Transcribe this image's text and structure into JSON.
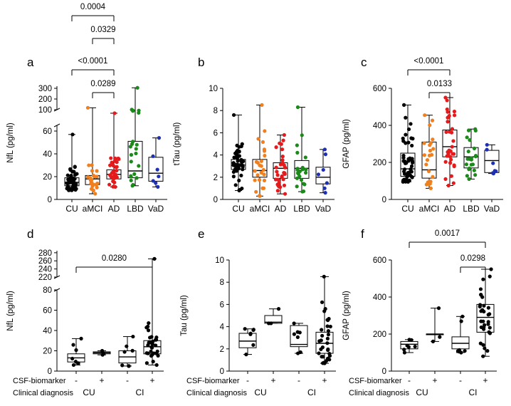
{
  "figure": {
    "row_headers": {
      "biomarker": "CSF-biomarker",
      "diagnosis": "Clinical diagnosis"
    }
  },
  "chart_data": [
    {
      "panel": "a",
      "type": "box",
      "ylabel": "NfL (pg/ml)",
      "categories": [
        "CU",
        "aMCI",
        "AD",
        "LBD",
        "VaD"
      ],
      "colors": [
        "#000000",
        "#f07f1e",
        "#e41a1c",
        "#1b8a1b",
        "#1f2fb4"
      ],
      "axis": {
        "lower_ticks": [
          "0",
          "20",
          "40",
          "60"
        ],
        "upper_ticks": [
          "100",
          "200",
          "300"
        ]
      },
      "boxes": [
        {
          "min": 8,
          "q1": 12,
          "median": 15,
          "q3": 19,
          "max": 57,
          "n": 50
        },
        {
          "min": 5,
          "q1": 13,
          "median": 18,
          "q3": 21,
          "max": 118,
          "n": 25
        },
        {
          "min": 11,
          "q1": 18,
          "median": 22,
          "q3": 26,
          "max": 67,
          "n": 32
        },
        {
          "min": 12,
          "q1": 19,
          "median": 25,
          "q3": 51,
          "max": 305,
          "n": 22
        },
        {
          "min": 11,
          "q1": 16,
          "median": 23,
          "q3": 37,
          "max": 54,
          "n": 7
        }
      ],
      "comparisons": [
        {
          "from": 0,
          "to": 2,
          "p": "0.0004"
        },
        {
          "from": 1,
          "to": 2,
          "p": "0.0329"
        },
        {
          "from": 0,
          "to": 2,
          "p": "<0.0001"
        },
        {
          "from": 1,
          "to": 2,
          "p": "0.0289"
        }
      ]
    },
    {
      "panel": "b",
      "type": "box",
      "ylabel": "tTau (pg/ml)",
      "categories": [
        "CU",
        "aMCI",
        "AD",
        "LBD",
        "VaD"
      ],
      "colors": [
        "#000000",
        "#f07f1e",
        "#e41a1c",
        "#1b8a1b",
        "#1f2fb4"
      ],
      "ylim": [
        0,
        10
      ],
      "yticks": [
        0,
        2,
        4,
        6,
        8,
        10
      ],
      "boxes": [
        {
          "min": 0.8,
          "q1": 2.7,
          "median": 3.1,
          "q3": 3.6,
          "max": 7.6,
          "n": 50
        },
        {
          "min": 0.3,
          "q1": 2.0,
          "median": 2.6,
          "q3": 3.6,
          "max": 8.5,
          "n": 25
        },
        {
          "min": 0.5,
          "q1": 1.9,
          "median": 2.8,
          "q3": 3.3,
          "max": 5.8,
          "n": 32
        },
        {
          "min": 0.7,
          "q1": 1.9,
          "median": 2.8,
          "q3": 3.5,
          "max": 8.3,
          "n": 22
        },
        {
          "min": 0.6,
          "q1": 1.4,
          "median": 2.0,
          "q3": 2.9,
          "max": 4.5,
          "n": 7
        }
      ],
      "comparisons": []
    },
    {
      "panel": "c",
      "type": "box",
      "ylabel": "GFAP (pg/ml)",
      "categories": [
        "CU",
        "aMCI",
        "AD",
        "LBD",
        "VaD"
      ],
      "colors": [
        "#000000",
        "#f07f1e",
        "#e41a1c",
        "#1b8a1b",
        "#1f2fb4"
      ],
      "ylim": [
        0,
        600
      ],
      "yticks": [
        0,
        200,
        400,
        600
      ],
      "boxes": [
        {
          "min": 95,
          "q1": 125,
          "median": 165,
          "q3": 250,
          "max": 510,
          "n": 50
        },
        {
          "min": 60,
          "q1": 115,
          "median": 160,
          "q3": 310,
          "max": 455,
          "n": 25
        },
        {
          "min": 75,
          "q1": 230,
          "median": 285,
          "q3": 375,
          "max": 550,
          "n": 32
        },
        {
          "min": 110,
          "q1": 170,
          "median": 230,
          "q3": 280,
          "max": 380,
          "n": 22
        },
        {
          "min": 140,
          "q1": 145,
          "median": 210,
          "q3": 265,
          "max": 295,
          "n": 7
        }
      ],
      "comparisons": [
        {
          "from": 0,
          "to": 2,
          "p": "<0.0001"
        },
        {
          "from": 1,
          "to": 2,
          "p": "0.0133"
        }
      ]
    },
    {
      "panel": "d",
      "type": "box",
      "ylabel": "NfL (pg/ml)",
      "categories": [
        "-",
        "+",
        "-",
        "+"
      ],
      "groups": [
        "CU",
        "CI"
      ],
      "axis": {
        "lower_ticks": [
          "0",
          "20",
          "40",
          "60",
          "80"
        ],
        "upper_ticks": [
          "220",
          "240",
          "260",
          "280"
        ]
      },
      "boxes": [
        {
          "min": 6,
          "q1": 9,
          "median": 13,
          "q3": 17,
          "max": 32,
          "n": 7
        },
        {
          "min": 16,
          "q1": 17,
          "median": 18,
          "q3": 19,
          "max": 20,
          "n": 3
        },
        {
          "min": 5,
          "q1": 8,
          "median": 14,
          "q3": 20,
          "max": 34,
          "n": 7
        },
        {
          "min": 6,
          "q1": 17,
          "median": 24,
          "q3": 30,
          "max": 265,
          "n": 32
        }
      ],
      "comparisons": [
        {
          "from": 0,
          "to": 3,
          "p": "0.0280"
        }
      ]
    },
    {
      "panel": "e",
      "type": "box",
      "ylabel": "Tau (pg/ml)",
      "categories": [
        "-",
        "+",
        "-",
        "+"
      ],
      "groups": [
        "CU",
        "CI"
      ],
      "ylim": [
        0,
        10
      ],
      "yticks": [
        0,
        2,
        4,
        6,
        8,
        10
      ],
      "boxes": [
        {
          "min": 1.5,
          "q1": 2.1,
          "median": 2.7,
          "q3": 3.4,
          "max": 3.8,
          "n": 7
        },
        {
          "min": 4.3,
          "q1": 4.3,
          "median": 4.4,
          "q3": 5.0,
          "max": 5.6,
          "n": 3
        },
        {
          "min": 1.6,
          "q1": 2.2,
          "median": 2.4,
          "q3": 4.1,
          "max": 4.3,
          "n": 7
        },
        {
          "min": 0.7,
          "q1": 1.6,
          "median": 2.5,
          "q3": 3.5,
          "max": 8.5,
          "n": 32
        }
      ],
      "comparisons": []
    },
    {
      "panel": "f",
      "type": "box",
      "ylabel": "GFAP (pg/ml)",
      "categories": [
        "-",
        "+",
        "-",
        "+"
      ],
      "groups": [
        "CU",
        "CI"
      ],
      "ylim": [
        0,
        600
      ],
      "yticks": [
        0,
        200,
        400,
        600
      ],
      "boxes": [
        {
          "min": 100,
          "q1": 120,
          "median": 145,
          "q3": 160,
          "max": 170,
          "n": 7
        },
        {
          "min": 160,
          "q1": 200,
          "median": 200,
          "q3": 200,
          "max": 340,
          "n": 3
        },
        {
          "min": 100,
          "q1": 120,
          "median": 150,
          "q3": 185,
          "max": 295,
          "n": 7
        },
        {
          "min": 80,
          "q1": 210,
          "median": 290,
          "q3": 360,
          "max": 550,
          "n": 32
        }
      ],
      "comparisons": [
        {
          "from": 0,
          "to": 3,
          "p": "0.0017"
        },
        {
          "from": 2,
          "to": 3,
          "p": "0.0298"
        }
      ]
    }
  ]
}
